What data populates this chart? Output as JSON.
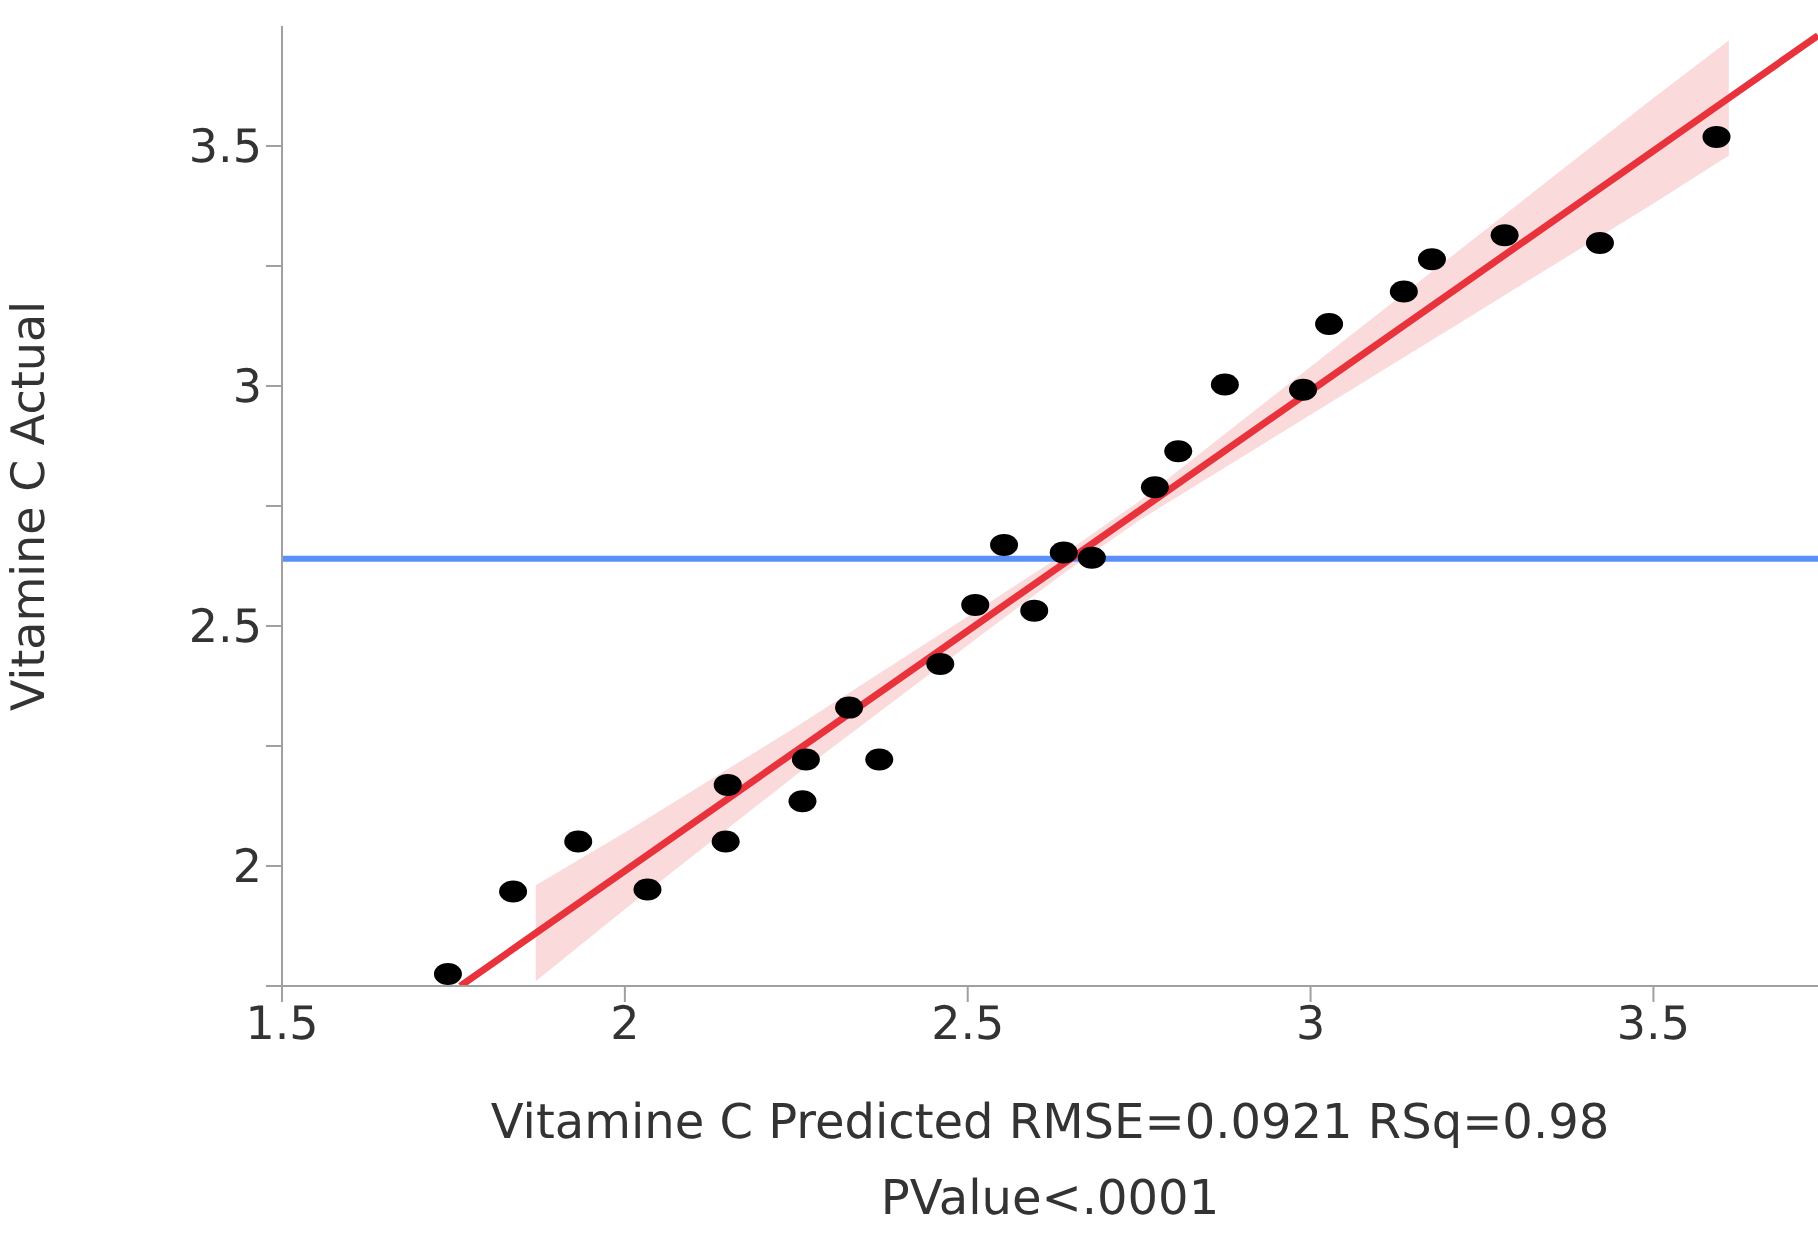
{
  "chart_data": {
    "type": "scatter",
    "xlabel": "Vitamine C Predicted",
    "ylabel": "Vitamine C Actual",
    "annotations": [
      "RMSE=0.0921 RSq=0.98 PValue<.0001"
    ],
    "xlim": [
      1.5,
      3.74
    ],
    "xticks": [
      1.5,
      2,
      2.5,
      3,
      3.5
    ],
    "ylim": [
      1.75,
      3.75
    ],
    "yticks": [
      {
        "value": 1.75,
        "label": null
      },
      2,
      {
        "value": 2.25,
        "label": null
      },
      2.5,
      {
        "value": 2.75,
        "label": null
      },
      3,
      {
        "value": 3.25,
        "label": null
      },
      3.5
    ],
    "grid": false,
    "legend": false,
    "ref_lines": [
      {
        "axis": "y",
        "value": 2.64,
        "color": "#5b8ff9"
      }
    ],
    "series": [
      {
        "marker": "circle",
        "color": "#000000",
        "x": [
          1.742,
          1.837,
          1.932,
          2.033,
          2.15,
          2.147,
          2.264,
          2.259,
          2.327,
          2.371,
          2.46,
          2.511,
          2.553,
          2.597,
          2.64,
          2.681,
          2.773,
          2.807,
          2.875,
          2.989,
          3.027,
          3.136,
          3.177,
          3.283,
          3.422,
          3.592
        ],
        "values": [
          1.775,
          1.947,
          2.051,
          1.951,
          2.169,
          2.051,
          2.222,
          2.135,
          2.33,
          2.222,
          2.421,
          2.544,
          2.669,
          2.532,
          2.653,
          2.642,
          2.789,
          2.864,
          3.003,
          2.992,
          3.129,
          3.197,
          3.264,
          3.314,
          3.298,
          3.519
        ]
      },
      {
        "type": "line",
        "marker": "none",
        "color": "#e8323c",
        "x": [
          1.76,
          1.87,
          2.0,
          2.25,
          2.5,
          2.64,
          2.75,
          3.0,
          3.25,
          3.5,
          3.61,
          3.74
        ],
        "values": [
          1.75,
          1.86,
          1.99,
          2.24,
          2.49,
          2.63,
          2.74,
          2.99,
          3.24,
          3.49,
          3.6,
          3.73
        ],
        "lower": [
          null,
          1.76,
          1.91,
          2.19,
          2.46,
          2.61,
          2.72,
          2.94,
          3.16,
          3.38,
          3.48,
          null
        ],
        "upper": [
          null,
          1.96,
          2.07,
          2.29,
          2.52,
          2.65,
          2.76,
          3.04,
          3.32,
          3.6,
          3.72,
          null
        ]
      }
    ]
  }
}
